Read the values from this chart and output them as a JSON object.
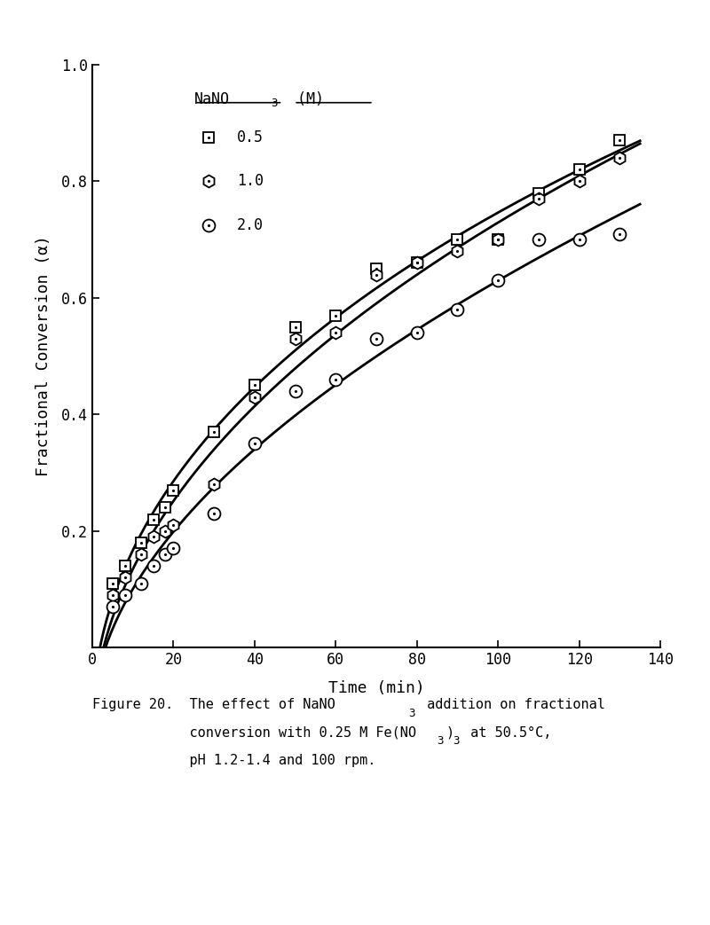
{
  "title": "",
  "xlabel": "Time (min)",
  "ylabel": "Fractional Conversion (α)",
  "xlim": [
    0,
    140
  ],
  "ylim": [
    0,
    1.0
  ],
  "xticks": [
    0,
    20,
    40,
    60,
    80,
    100,
    120,
    140
  ],
  "yticks": [
    0.2,
    0.4,
    0.6,
    0.8,
    1.0
  ],
  "series": [
    {
      "label": "0.5",
      "marker": "square",
      "x": [
        5,
        8,
        12,
        15,
        18,
        20,
        30,
        40,
        50,
        60,
        70,
        80,
        90,
        100,
        110,
        120,
        130
      ],
      "y": [
        0.11,
        0.14,
        0.18,
        0.22,
        0.24,
        0.27,
        0.37,
        0.45,
        0.55,
        0.57,
        0.65,
        0.66,
        0.7,
        0.7,
        0.78,
        0.82,
        0.87
      ]
    },
    {
      "label": "1.0",
      "marker": "hexagon",
      "x": [
        5,
        8,
        12,
        15,
        18,
        20,
        30,
        40,
        50,
        60,
        70,
        80,
        90,
        100,
        110,
        120,
        130
      ],
      "y": [
        0.09,
        0.12,
        0.16,
        0.19,
        0.2,
        0.21,
        0.28,
        0.43,
        0.53,
        0.54,
        0.64,
        0.66,
        0.68,
        0.7,
        0.77,
        0.8,
        0.84
      ]
    },
    {
      "label": "2.0",
      "marker": "circle",
      "x": [
        5,
        8,
        12,
        15,
        18,
        20,
        30,
        40,
        50,
        60,
        70,
        80,
        90,
        100,
        110,
        120,
        130
      ],
      "y": [
        0.07,
        0.09,
        0.11,
        0.14,
        0.16,
        0.17,
        0.23,
        0.35,
        0.44,
        0.46,
        0.53,
        0.54,
        0.58,
        0.63,
        0.7,
        0.7,
        0.71
      ]
    }
  ],
  "legend_title_main": "NaNO",
  "legend_title_sub": "3",
  "legend_title_end": " (M)",
  "legend_entries": [
    {
      "marker": "square",
      "label": "0.5"
    },
    {
      "marker": "hexagon",
      "label": "1.0"
    },
    {
      "marker": "circle",
      "label": "2.0"
    }
  ],
  "caption_line1": "Figure 20.   The effect of NaNO",
  "caption_line1_sub": "3",
  "caption_line1_end": " addition on fractional",
  "caption_line2": "             conversion with 0.25 M Fe(NO",
  "caption_line2_sub": "3",
  "caption_line2_end": ")",
  "caption_line2_sub2": "3",
  "caption_line2_end2": " at 50.5°C,",
  "caption_line3": "             pH 1.2-1.4 and 100 rpm.",
  "background_color": "#ffffff",
  "line_color": "#000000",
  "font_size": 12,
  "caption_font_size": 11
}
